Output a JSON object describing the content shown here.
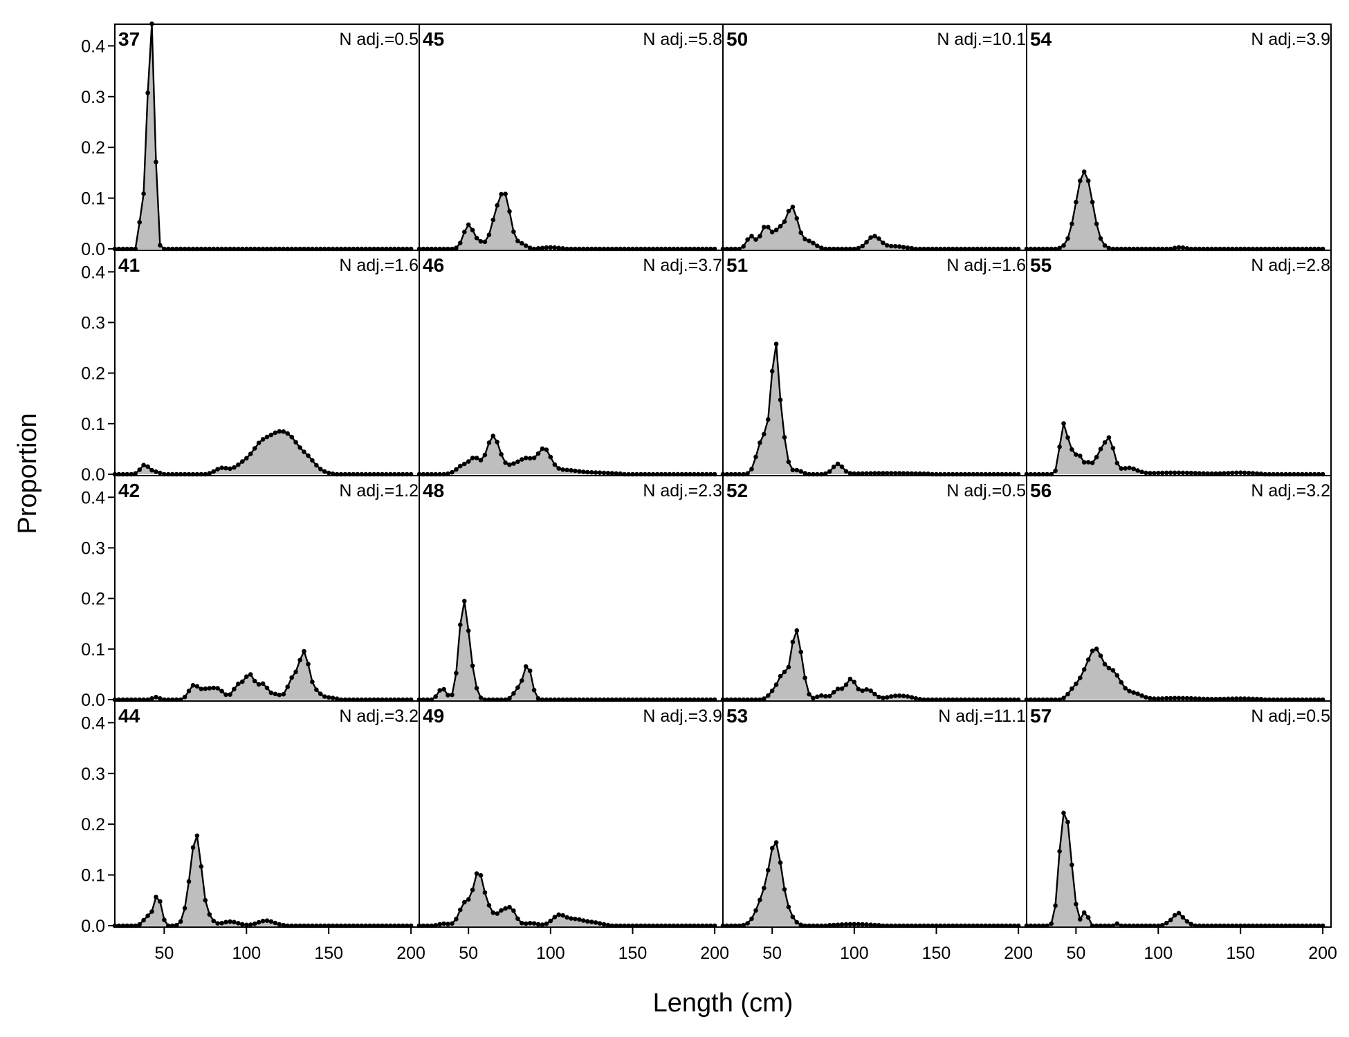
{
  "chart_data": {
    "type": "area",
    "xlabel": "Length (cm)",
    "ylabel": "Proportion",
    "xlim": [
      20,
      205
    ],
    "ylim": [
      0,
      0.44
    ],
    "x_ticks": [
      50,
      100,
      150,
      200
    ],
    "y_ticks": [
      0.0,
      0.1,
      0.2,
      0.3,
      0.4
    ],
    "y_tick_labels": [
      "0.0",
      "0.1",
      "0.2",
      "0.3",
      "0.4"
    ],
    "grid": false,
    "fill_color": "#bebebe",
    "line_color": "#000000",
    "x_start": 20,
    "x_step": 2.5,
    "x_count": 73,
    "panels": [
      {
        "id": "37",
        "label": "37",
        "n_adj": "N adj.=0.5",
        "peaks": [
          [
            36,
            0.085,
            1
          ],
          [
            38,
            0.065,
            1
          ],
          [
            40,
            0.205,
            1.2
          ],
          [
            42,
            0.375,
            1.2
          ],
          [
            44,
            0.235,
            1
          ],
          [
            46,
            0.02,
            1
          ]
        ]
      },
      {
        "id": "45",
        "label": "45",
        "n_adj": "N adj.=5.8",
        "peaks": [
          [
            50,
            0.047,
            3
          ],
          [
            57,
            0.012,
            3
          ],
          [
            66,
            0.045,
            3
          ],
          [
            72,
            0.105,
            3.5
          ],
          [
            82,
            0.01,
            3
          ],
          [
            100,
            0.003,
            5
          ]
        ]
      },
      {
        "id": "50",
        "label": "50",
        "n_adj": "N adj.=10.1",
        "peaks": [
          [
            37,
            0.025,
            2.5
          ],
          [
            46,
            0.045,
            3
          ],
          [
            54,
            0.035,
            3
          ],
          [
            62,
            0.082,
            3.5
          ],
          [
            72,
            0.015,
            4
          ],
          [
            112,
            0.025,
            4
          ],
          [
            125,
            0.005,
            6
          ]
        ]
      },
      {
        "id": "54",
        "label": "54",
        "n_adj": "N adj.=3.9",
        "peaks": [
          [
            55,
            0.152,
            5
          ],
          [
            113,
            0.003,
            3
          ]
        ]
      },
      {
        "id": "41",
        "label": "41",
        "n_adj": "N adj.=1.6",
        "peaks": [
          [
            38,
            0.018,
            2.5
          ],
          [
            44,
            0.005,
            3
          ],
          [
            85,
            0.012,
            4
          ],
          [
            98,
            0.02,
            5
          ],
          [
            108,
            0.045,
            5
          ],
          [
            118,
            0.063,
            6
          ],
          [
            128,
            0.055,
            6
          ],
          [
            138,
            0.02,
            4
          ],
          [
            145,
            0.005,
            4
          ]
        ]
      },
      {
        "id": "46",
        "label": "46",
        "n_adj": "N adj.=3.7",
        "peaks": [
          [
            47,
            0.018,
            4
          ],
          [
            54,
            0.028,
            3
          ],
          [
            65,
            0.075,
            4
          ],
          [
            78,
            0.018,
            5
          ],
          [
            86,
            0.025,
            4
          ],
          [
            96,
            0.048,
            4
          ],
          [
            108,
            0.008,
            8
          ],
          [
            128,
            0.003,
            10
          ]
        ]
      },
      {
        "id": "51",
        "label": "51",
        "n_adj": "N adj.=1.6",
        "peaks": [
          [
            43,
            0.055,
            3
          ],
          [
            49,
            0.085,
            3
          ],
          [
            52,
            0.19,
            2
          ],
          [
            56,
            0.08,
            2.5
          ],
          [
            65,
            0.008,
            3
          ],
          [
            90,
            0.02,
            3
          ],
          [
            120,
            0.002,
            20
          ]
        ]
      },
      {
        "id": "55",
        "label": "55",
        "n_adj": "N adj.=2.8",
        "peaks": [
          [
            42,
            0.085,
            2
          ],
          [
            46,
            0.048,
            2.5
          ],
          [
            52,
            0.035,
            2.5
          ],
          [
            58,
            0.02,
            2
          ],
          [
            64,
            0.035,
            2.5
          ],
          [
            70,
            0.07,
            3
          ],
          [
            82,
            0.012,
            5
          ],
          [
            110,
            0.003,
            15
          ],
          [
            150,
            0.003,
            8
          ]
        ]
      },
      {
        "id": "42",
        "label": "42",
        "n_adj": "N adj.=1.2",
        "peaks": [
          [
            45,
            0.005,
            2
          ],
          [
            68,
            0.028,
            3
          ],
          [
            75,
            0.015,
            3
          ],
          [
            82,
            0.022,
            4
          ],
          [
            95,
            0.028,
            3
          ],
          [
            102,
            0.048,
            3
          ],
          [
            110,
            0.03,
            3
          ],
          [
            118,
            0.01,
            3
          ],
          [
            128,
            0.04,
            3
          ],
          [
            135,
            0.092,
            3
          ],
          [
            142,
            0.015,
            3
          ],
          [
            150,
            0.004,
            4
          ]
        ]
      },
      {
        "id": "48",
        "label": "48",
        "n_adj": "N adj.=2.3",
        "peaks": [
          [
            34,
            0.022,
            2.5
          ],
          [
            47,
            0.19,
            2.8
          ],
          [
            52,
            0.04,
            2.5
          ],
          [
            80,
            0.02,
            2.5
          ],
          [
            86,
            0.068,
            2.5
          ]
        ]
      },
      {
        "id": "52",
        "label": "52",
        "n_adj": "N adj.=0.5",
        "peaks": [
          [
            51,
            0.015,
            3
          ],
          [
            57,
            0.05,
            3
          ],
          [
            64,
            0.12,
            2.5
          ],
          [
            68,
            0.05,
            2.5
          ],
          [
            80,
            0.008,
            3
          ],
          [
            90,
            0.02,
            3
          ],
          [
            98,
            0.04,
            3
          ],
          [
            108,
            0.02,
            4
          ],
          [
            125,
            0.007,
            5
          ],
          [
            133,
            0.004,
            4
          ]
        ]
      },
      {
        "id": "56",
        "label": "56",
        "n_adj": "N adj.=3.2",
        "peaks": [
          [
            48,
            0.015,
            3
          ],
          [
            55,
            0.04,
            4
          ],
          [
            62,
            0.085,
            4
          ],
          [
            72,
            0.055,
            5
          ],
          [
            85,
            0.012,
            5
          ],
          [
            112,
            0.003,
            12
          ],
          [
            150,
            0.002,
            10
          ]
        ]
      },
      {
        "id": "44",
        "label": "44",
        "n_adj": "N adj.=3.2",
        "peaks": [
          [
            40,
            0.018,
            2.5
          ],
          [
            46,
            0.06,
            2.2
          ],
          [
            66,
            0.06,
            3
          ],
          [
            70,
            0.15,
            2.8
          ],
          [
            76,
            0.02,
            3
          ],
          [
            90,
            0.008,
            5
          ],
          [
            112,
            0.01,
            5
          ]
        ]
      },
      {
        "id": "49",
        "label": "49",
        "n_adj": "N adj.=3.9",
        "peaks": [
          [
            35,
            0.004,
            3
          ],
          [
            48,
            0.045,
            3.5
          ],
          [
            56,
            0.1,
            3
          ],
          [
            62,
            0.03,
            3
          ],
          [
            70,
            0.025,
            3
          ],
          [
            76,
            0.032,
            3
          ],
          [
            88,
            0.005,
            4
          ],
          [
            105,
            0.02,
            4
          ],
          [
            115,
            0.012,
            5
          ],
          [
            126,
            0.006,
            5
          ]
        ]
      },
      {
        "id": "53",
        "label": "53",
        "n_adj": "N adj.=11.1",
        "peaks": [
          [
            45,
            0.055,
            4.5
          ],
          [
            52,
            0.14,
            3.5
          ],
          [
            58,
            0.03,
            4
          ],
          [
            100,
            0.003,
            10
          ]
        ]
      },
      {
        "id": "57",
        "label": "57",
        "n_adj": "N adj.=0.5",
        "peaks": [
          [
            42,
            0.2,
            2.5
          ],
          [
            46,
            0.12,
            2
          ],
          [
            50,
            0.025,
            2
          ],
          [
            56,
            0.035,
            1.2
          ],
          [
            75,
            0.004,
            1.2
          ],
          [
            106,
            0.004,
            2
          ],
          [
            112,
            0.025,
            3
          ],
          [
            118,
            0.004,
            2
          ]
        ]
      }
    ]
  }
}
